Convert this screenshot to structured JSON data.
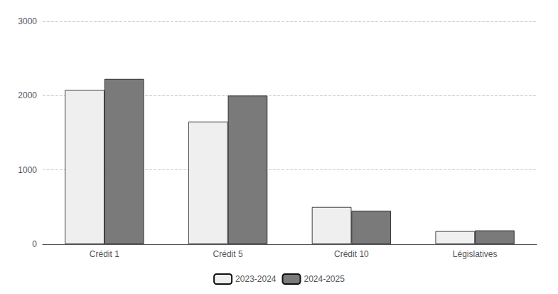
{
  "chart_data": {
    "type": "bar",
    "categories": [
      "Crédit 1",
      "Crédit 5",
      "Crédit 10",
      "Législatives"
    ],
    "series": [
      {
        "name": "2023-2024",
        "color": "#efefef",
        "values": [
          2075,
          1650,
          500,
          175
        ]
      },
      {
        "name": "2024-2025",
        "color": "#7a7a7a",
        "values": [
          2225,
          2000,
          450,
          185
        ]
      }
    ],
    "ylim": [
      0,
      3000
    ],
    "yticks": [
      0,
      1000,
      2000,
      3000
    ],
    "grid": true,
    "legend": "bottom"
  }
}
